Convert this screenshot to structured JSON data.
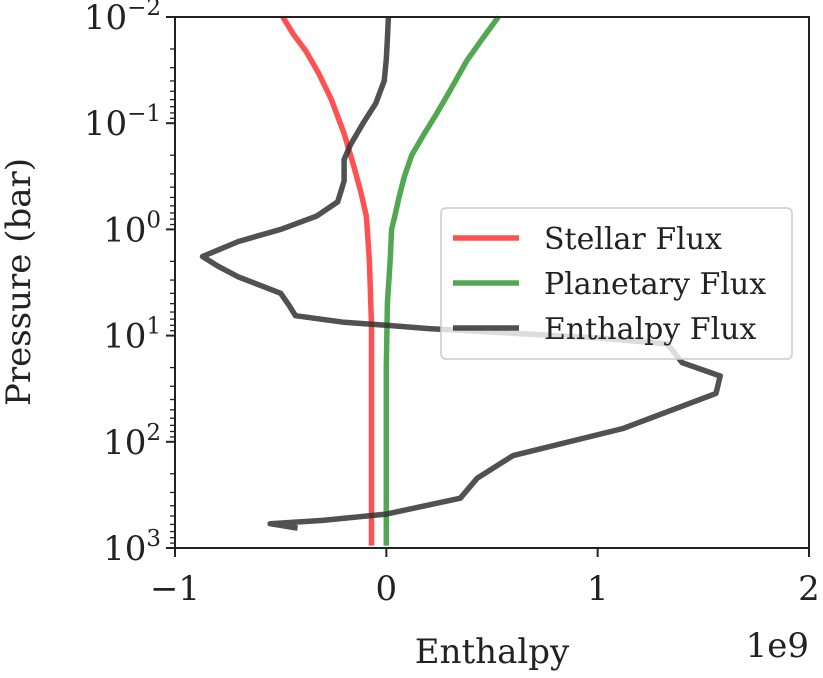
{
  "chart_data": {
    "type": "line",
    "xlabel": "Enthalpy",
    "ylabel": "Pressure (bar)",
    "x_offset_label": "1e9",
    "xlim": [
      -1,
      2
    ],
    "ylim": [
      1000,
      0.01
    ],
    "y_scale": "log",
    "y_inverted": true,
    "grid": false,
    "legend_position": "center-right",
    "x_ticks": [
      {
        "value": -1,
        "label": "−1"
      },
      {
        "value": 0,
        "label": "0"
      },
      {
        "value": 1,
        "label": "1"
      },
      {
        "value": 2,
        "label": "2"
      }
    ],
    "y_ticks": [
      {
        "value": 0.01,
        "base": "10",
        "exp": "−2"
      },
      {
        "value": 0.1,
        "base": "10",
        "exp": "−1"
      },
      {
        "value": 1,
        "base": "10",
        "exp": "0"
      },
      {
        "value": 10,
        "base": "10",
        "exp": "1"
      },
      {
        "value": 100,
        "base": "10",
        "exp": "2"
      },
      {
        "value": 1000,
        "base": "10",
        "exp": "3"
      }
    ],
    "series": [
      {
        "name": "Stellar Flux",
        "color": "#ff3333",
        "points": [
          [
            -0.49,
            0.01
          ],
          [
            -0.44,
            0.0145
          ],
          [
            -0.38,
            0.021
          ],
          [
            -0.32,
            0.034
          ],
          [
            -0.26,
            0.06
          ],
          [
            -0.2,
            0.125
          ],
          [
            -0.155,
            0.25
          ],
          [
            -0.12,
            0.45
          ],
          [
            -0.095,
            0.75
          ],
          [
            -0.09,
            1.0
          ],
          [
            -0.08,
            2.0
          ],
          [
            -0.07,
            8.0
          ],
          [
            -0.07,
            100.0
          ],
          [
            -0.07,
            950.0
          ]
        ]
      },
      {
        "name": "Planetary Flux",
        "color": "#339933",
        "points": [
          [
            0.53,
            0.01
          ],
          [
            0.45,
            0.0165
          ],
          [
            0.38,
            0.026
          ],
          [
            0.3,
            0.05
          ],
          [
            0.24,
            0.08
          ],
          [
            0.18,
            0.125
          ],
          [
            0.12,
            0.2
          ],
          [
            0.085,
            0.32
          ],
          [
            0.06,
            0.5
          ],
          [
            0.04,
            0.75
          ],
          [
            0.025,
            1.0
          ],
          [
            0.018,
            2.0
          ],
          [
            0.005,
            5.0
          ],
          [
            0.0,
            20.0
          ],
          [
            0.0,
            200.0
          ],
          [
            0.0,
            950.0
          ]
        ]
      },
      {
        "name": "Enthalpy Flux",
        "color": "#333333",
        "points": [
          [
            0.01,
            0.01
          ],
          [
            0.005,
            0.016
          ],
          [
            0.0,
            0.025
          ],
          [
            -0.01,
            0.04
          ],
          [
            -0.05,
            0.065
          ],
          [
            -0.11,
            0.1
          ],
          [
            -0.17,
            0.16
          ],
          [
            -0.2,
            0.22
          ],
          [
            -0.2,
            0.35
          ],
          [
            -0.23,
            0.55
          ],
          [
            -0.33,
            0.75
          ],
          [
            -0.5,
            1.0
          ],
          [
            -0.7,
            1.3
          ],
          [
            -0.87,
            1.8
          ],
          [
            -0.8,
            2.2
          ],
          [
            -0.7,
            2.8
          ],
          [
            -0.5,
            4.0
          ],
          [
            -0.46,
            5.2
          ],
          [
            -0.43,
            6.5
          ],
          [
            -0.2,
            7.5
          ],
          [
            0.0,
            8.0
          ],
          [
            0.2,
            8.6
          ],
          [
            0.6,
            9.5
          ],
          [
            1.0,
            10.5
          ],
          [
            1.33,
            12.0
          ],
          [
            1.4,
            18.0
          ],
          [
            1.58,
            24.0
          ],
          [
            1.56,
            35.0
          ],
          [
            1.12,
            75.0
          ],
          [
            0.6,
            135.0
          ],
          [
            0.43,
            220.0
          ],
          [
            0.35,
            340.0
          ],
          [
            0.0,
            480.0
          ],
          [
            -0.3,
            550.0
          ],
          [
            -0.55,
            590.0
          ],
          [
            -0.42,
            650.0
          ]
        ]
      }
    ]
  }
}
